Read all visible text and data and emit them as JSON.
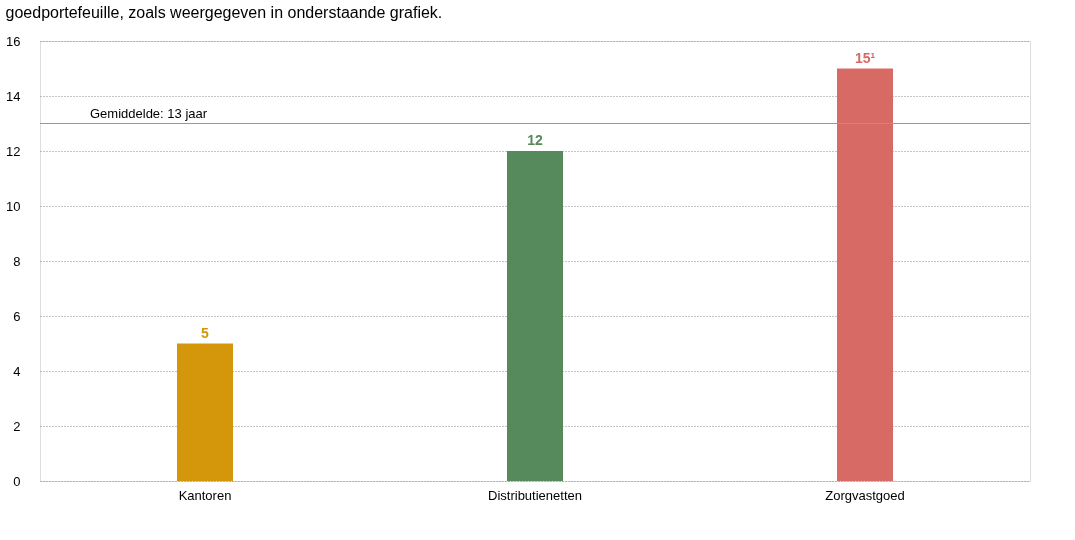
{
  "chart_data": {
    "type": "bar",
    "title": "goedportefeuille, zoals weergegeven in onderstaande grafiek.",
    "categories": [
      "Kantoren",
      "Distributienetten",
      "Zorgvastgoed"
    ],
    "values": [
      5,
      12,
      15
    ],
    "colors": [
      "#d4960a",
      "#568a5c",
      "#d76a64"
    ],
    "value_labels": [
      "5",
      "12",
      "15¹"
    ],
    "ylim": [
      0,
      16
    ],
    "yticks": [
      0,
      2,
      4,
      6,
      8,
      10,
      12,
      14,
      16
    ],
    "ref_lines": [
      {
        "axis": "y",
        "value": 13,
        "label": "Gemiddelde: 13 jaar",
        "color": "#999999"
      }
    ],
    "grid": "y"
  }
}
